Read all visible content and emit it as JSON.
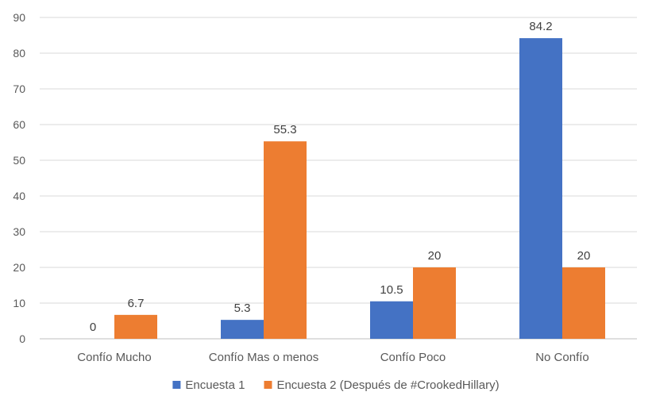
{
  "chart_data": {
    "type": "bar",
    "categories": [
      "Confío Mucho",
      "Confío Mas o menos",
      "Confío Poco",
      "No Confío"
    ],
    "series": [
      {
        "name": "Encuesta 1",
        "values": [
          0,
          5.3,
          10.5,
          84.2
        ],
        "color": "#4472C4"
      },
      {
        "name": "Encuesta 2 (Después de #CrookedHillary)",
        "values": [
          6.7,
          55.3,
          20,
          20
        ],
        "color": "#ED7D31"
      }
    ],
    "data_labels": [
      [
        "0",
        "5.3",
        "10.5",
        "84.2"
      ],
      [
        "6.7",
        "55.3",
        "20",
        "20"
      ]
    ],
    "yticks": [
      "0",
      "10",
      "20",
      "30",
      "40",
      "50",
      "60",
      "70",
      "80",
      "90"
    ],
    "ylim": [
      0,
      90
    ],
    "ystep": 10,
    "grid": true,
    "legend_position": "bottom"
  }
}
